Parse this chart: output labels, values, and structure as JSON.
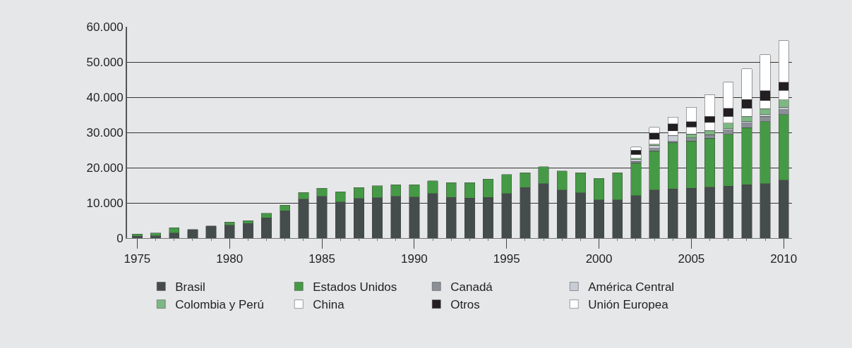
{
  "chart_data": {
    "type": "bar",
    "stacked": true,
    "x": [
      1975,
      1976,
      1977,
      1978,
      1979,
      1980,
      1981,
      1982,
      1983,
      1984,
      1985,
      1986,
      1987,
      1988,
      1989,
      1990,
      1991,
      1992,
      1993,
      1994,
      1995,
      1996,
      1997,
      1998,
      1999,
      2000,
      2001,
      2002,
      2003,
      2004,
      2005,
      2006,
      2007,
      2008,
      2009,
      2010
    ],
    "series": [
      {
        "name": "Brasil",
        "color": "#454c4c",
        "values": [
          600,
          700,
          1500,
          2500,
          3500,
          3700,
          4200,
          5800,
          7800,
          11100,
          11900,
          10300,
          11300,
          11500,
          11900,
          11700,
          12700,
          11600,
          11400,
          11600,
          12700,
          14400,
          15500,
          13700,
          12900,
          10900,
          10900,
          12100,
          13700,
          14000,
          14200,
          14500,
          14800,
          15200,
          15500,
          16500
        ]
      },
      {
        "name": "Estados Unidos",
        "color": "#459a45",
        "values": [
          600,
          800,
          1500,
          null,
          null,
          900,
          800,
          1300,
          1600,
          1900,
          2300,
          2900,
          3100,
          3400,
          3300,
          3500,
          3600,
          4200,
          4400,
          5200,
          5400,
          4200,
          4800,
          5400,
          5700,
          6100,
          7700,
          9300,
          11100,
          13200,
          13400,
          13900,
          14700,
          16200,
          17600,
          18600
        ]
      },
      {
        "name": "Canadá",
        "color": "#8a9096",
        "values": [
          null,
          null,
          null,
          null,
          null,
          null,
          null,
          null,
          null,
          null,
          null,
          null,
          null,
          null,
          null,
          null,
          null,
          null,
          null,
          null,
          null,
          null,
          null,
          null,
          null,
          null,
          null,
          400,
          700,
          300,
          900,
          1000,
          1200,
          1300,
          1500,
          1400
        ]
      },
      {
        "name": "América Central",
        "color": "#c8ccd4",
        "values": [
          null,
          null,
          null,
          null,
          null,
          null,
          null,
          null,
          null,
          null,
          null,
          null,
          null,
          null,
          null,
          null,
          null,
          null,
          null,
          null,
          null,
          null,
          null,
          null,
          null,
          null,
          null,
          500,
          900,
          1700,
          null,
          null,
          400,
          500,
          500,
          700
        ]
      },
      {
        "name": "Colombia y Perú",
        "color": "#7db882",
        "values": [
          null,
          null,
          null,
          null,
          null,
          null,
          null,
          null,
          null,
          null,
          null,
          null,
          null,
          null,
          null,
          null,
          null,
          null,
          null,
          null,
          null,
          null,
          null,
          null,
          null,
          null,
          null,
          400,
          300,
          null,
          1100,
          1200,
          1600,
          1400,
          1700,
          2100
        ]
      },
      {
        "name": "China",
        "color": "#ffffff",
        "values": [
          null,
          null,
          null,
          null,
          null,
          null,
          null,
          null,
          null,
          null,
          null,
          null,
          null,
          null,
          null,
          null,
          null,
          null,
          null,
          null,
          null,
          null,
          null,
          null,
          null,
          null,
          null,
          1100,
          1400,
          1300,
          2000,
          2300,
          1900,
          2300,
          2300,
          2700
        ]
      },
      {
        "name": "Otros",
        "color": "#231f20",
        "values": [
          null,
          null,
          null,
          null,
          null,
          null,
          null,
          null,
          null,
          null,
          null,
          null,
          null,
          null,
          null,
          null,
          null,
          null,
          null,
          null,
          null,
          null,
          null,
          null,
          null,
          null,
          null,
          1200,
          1800,
          2000,
          1500,
          1700,
          2300,
          2500,
          2800,
          2300
        ]
      },
      {
        "name": "Unión Europea",
        "color": "#ffffff",
        "values": [
          null,
          null,
          null,
          null,
          null,
          null,
          null,
          null,
          null,
          null,
          null,
          null,
          null,
          null,
          null,
          null,
          null,
          null,
          null,
          null,
          null,
          null,
          null,
          null,
          null,
          null,
          null,
          900,
          1600,
          1900,
          4100,
          6100,
          7400,
          8700,
          10200,
          11800
        ]
      }
    ],
    "xlim": [
      1974.45,
      2010.45
    ],
    "xticks": [
      1975,
      1980,
      1985,
      1990,
      1995,
      2000,
      2005,
      2010
    ],
    "ylim": [
      0,
      60000
    ],
    "yticks": [
      0,
      {
        "value": 10000,
        "label": "10.000"
      },
      {
        "value": 20000,
        "label": "20.000"
      },
      {
        "value": 30000,
        "label": "30.000"
      },
      {
        "value": 40000,
        "label": "40.000"
      },
      {
        "value": 50000,
        "label": "50.000"
      },
      {
        "value": 60000,
        "label": "60.000"
      }
    ],
    "grid": "y",
    "legend": "bottom"
  }
}
